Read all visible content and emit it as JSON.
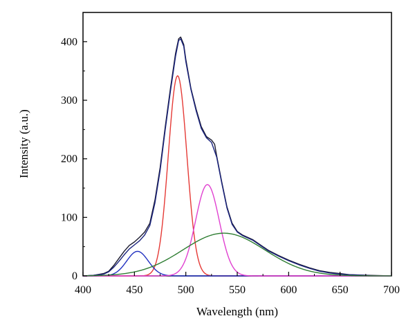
{
  "chart_data": {
    "type": "line",
    "title": "",
    "xlabel": "Wavelength (nm)",
    "ylabel": "Intensity (a.u.)",
    "xlim": [
      400,
      700
    ],
    "ylim": [
      0,
      450
    ],
    "xticks": [
      400,
      450,
      500,
      550,
      600,
      650,
      700
    ],
    "yticks": [
      0,
      100,
      200,
      300,
      400
    ],
    "grid": false,
    "legend": "none",
    "series": [
      {
        "color": "#1a1a2e",
        "points": [
          [
            400,
            0
          ],
          [
            410,
            1
          ],
          [
            420,
            4
          ],
          [
            425,
            8
          ],
          [
            430,
            18
          ],
          [
            435,
            30
          ],
          [
            440,
            42
          ],
          [
            445,
            52
          ],
          [
            450,
            58
          ],
          [
            455,
            66
          ],
          [
            460,
            75
          ],
          [
            465,
            90
          ],
          [
            470,
            130
          ],
          [
            475,
            185
          ],
          [
            480,
            255
          ],
          [
            485,
            320
          ],
          [
            490,
            380
          ],
          [
            493,
            405
          ],
          [
            495,
            408
          ],
          [
            498,
            395
          ],
          [
            500,
            370
          ],
          [
            505,
            320
          ],
          [
            510,
            285
          ],
          [
            515,
            255
          ],
          [
            520,
            238
          ],
          [
            525,
            232
          ],
          [
            528,
            225
          ],
          [
            530,
            205
          ],
          [
            535,
            160
          ],
          [
            540,
            118
          ],
          [
            545,
            90
          ],
          [
            550,
            76
          ],
          [
            555,
            70
          ],
          [
            560,
            66
          ],
          [
            565,
            62
          ],
          [
            570,
            56
          ],
          [
            580,
            44
          ],
          [
            590,
            35
          ],
          [
            600,
            27
          ],
          [
            610,
            20
          ],
          [
            620,
            14
          ],
          [
            630,
            9
          ],
          [
            640,
            6
          ],
          [
            650,
            4
          ],
          [
            660,
            2
          ],
          [
            680,
            1
          ],
          [
            700,
            0
          ]
        ]
      },
      {
        "color": "#1a237e",
        "points": [
          [
            400,
            0
          ],
          [
            410,
            1
          ],
          [
            420,
            3
          ],
          [
            425,
            7
          ],
          [
            430,
            15
          ],
          [
            435,
            25
          ],
          [
            440,
            36
          ],
          [
            445,
            46
          ],
          [
            450,
            53
          ],
          [
            455,
            60
          ],
          [
            460,
            70
          ],
          [
            465,
            86
          ],
          [
            470,
            125
          ],
          [
            475,
            180
          ],
          [
            480,
            250
          ],
          [
            485,
            315
          ],
          [
            490,
            375
          ],
          [
            493,
            402
          ],
          [
            495,
            405
          ],
          [
            498,
            392
          ],
          [
            500,
            366
          ],
          [
            505,
            318
          ],
          [
            510,
            282
          ],
          [
            515,
            252
          ],
          [
            520,
            236
          ],
          [
            525,
            228
          ],
          [
            530,
            203
          ],
          [
            535,
            158
          ],
          [
            540,
            116
          ],
          [
            545,
            88
          ],
          [
            550,
            75
          ],
          [
            555,
            69
          ],
          [
            560,
            65
          ],
          [
            565,
            61
          ],
          [
            570,
            55
          ],
          [
            580,
            43
          ],
          [
            590,
            34
          ],
          [
            600,
            26
          ],
          [
            610,
            19
          ],
          [
            620,
            13
          ],
          [
            630,
            8
          ],
          [
            640,
            5
          ],
          [
            650,
            3
          ],
          [
            660,
            2
          ],
          [
            680,
            0.5
          ],
          [
            700,
            0
          ]
        ]
      },
      {
        "color": "#e53935",
        "type": "gaussian",
        "center": 492,
        "amplitude": 342,
        "sigma": 9
      },
      {
        "color": "#2030c0",
        "type": "gaussian",
        "center": 453,
        "amplitude": 42,
        "sigma": 10.5
      },
      {
        "color": "#e040d0",
        "type": "gaussian",
        "center": 521,
        "amplitude": 156,
        "sigma": 11.5
      },
      {
        "color": "#2e7d32",
        "type": "gaussian",
        "center": 537,
        "amplitude": 73,
        "sigma": 40
      }
    ]
  }
}
